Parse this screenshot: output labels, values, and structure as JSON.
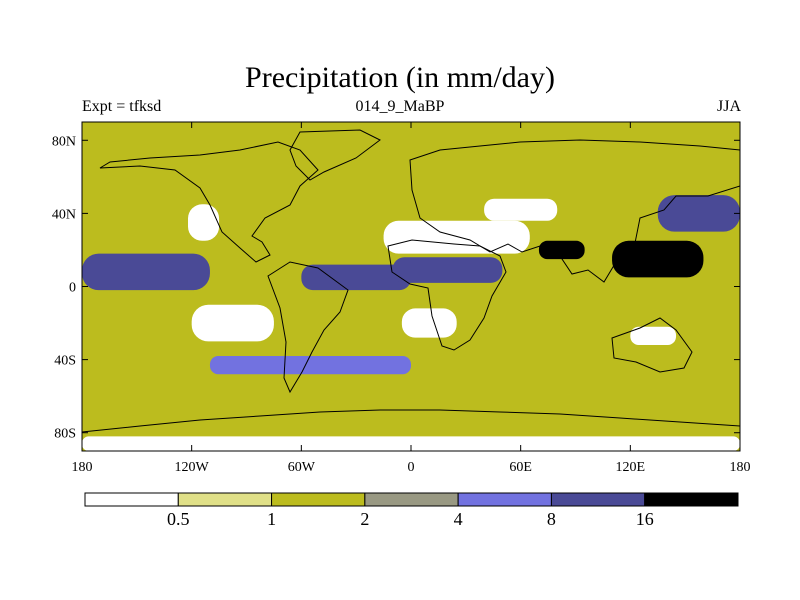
{
  "chart_data": {
    "type": "heatmap",
    "title": "Precipitation (in mm/day)",
    "subtitle_left": "Expt = tfksd",
    "subtitle_center": "014_9_MaBP",
    "subtitle_right": "JJA",
    "xlim": [
      -180,
      180
    ],
    "ylim": [
      -90,
      90
    ],
    "x_ticks": [
      {
        "value": -180,
        "label": "180"
      },
      {
        "value": -120,
        "label": "120W"
      },
      {
        "value": -60,
        "label": "60W"
      },
      {
        "value": 0,
        "label": "0"
      },
      {
        "value": 60,
        "label": "60E"
      },
      {
        "value": 120,
        "label": "120E"
      },
      {
        "value": 180,
        "label": "180"
      }
    ],
    "y_ticks": [
      {
        "value": 80,
        "label": "80N"
      },
      {
        "value": 40,
        "label": "40N"
      },
      {
        "value": 0,
        "label": "0"
      },
      {
        "value": -40,
        "label": "40S"
      },
      {
        "value": -80,
        "label": "80S"
      }
    ],
    "colorbar": {
      "levels": [
        0.5,
        1,
        2,
        4,
        8,
        16
      ],
      "labels": [
        "0.5",
        "1",
        "2",
        "4",
        "8",
        "16"
      ],
      "colors": [
        "#ffffff",
        "#e0e088",
        "#bcbc1e",
        "#999983",
        "#7272e0",
        "#4a4a96",
        "#000000"
      ]
    },
    "field_regions": [
      {
        "name": "global-background",
        "band": 2,
        "lon": [
          -180,
          180
        ],
        "lat": [
          -90,
          90
        ]
      },
      {
        "name": "tropical-pacific-rain",
        "band": 5,
        "lon": [
          -180,
          -110
        ],
        "lat": [
          -2,
          18
        ]
      },
      {
        "name": "atlantic-itcz",
        "band": 5,
        "lon": [
          -60,
          0
        ],
        "lat": [
          -2,
          12
        ]
      },
      {
        "name": "african-monsoon",
        "band": 5,
        "lon": [
          -10,
          50
        ],
        "lat": [
          2,
          16
        ]
      },
      {
        "name": "indian-monsoon",
        "band": 6,
        "lon": [
          70,
          95
        ],
        "lat": [
          15,
          25
        ]
      },
      {
        "name": "west-pacific-warm-pool",
        "band": 6,
        "lon": [
          110,
          160
        ],
        "lat": [
          5,
          25
        ]
      },
      {
        "name": "north-pacific-storm",
        "band": 5,
        "lon": [
          135,
          180
        ],
        "lat": [
          30,
          50
        ]
      },
      {
        "name": "sahara-arabia-desert",
        "band": 0,
        "lon": [
          -15,
          65
        ],
        "lat": [
          18,
          36
        ]
      },
      {
        "name": "central-asia-dry",
        "band": 0,
        "lon": [
          40,
          80
        ],
        "lat": [
          36,
          48
        ]
      },
      {
        "name": "southeast-pacific-dry",
        "band": 0,
        "lon": [
          -120,
          -75
        ],
        "lat": [
          -30,
          -10
        ]
      },
      {
        "name": "southern-africa-dry",
        "band": 0,
        "lon": [
          -5,
          25
        ],
        "lat": [
          -28,
          -12
        ]
      },
      {
        "name": "australia-dry",
        "band": 0,
        "lon": [
          120,
          145
        ],
        "lat": [
          -32,
          -22
        ]
      },
      {
        "name": "north-america-dry",
        "band": 0,
        "lon": [
          -122,
          -105
        ],
        "lat": [
          25,
          45
        ]
      },
      {
        "name": "antarctica-dry",
        "band": 0,
        "lon": [
          -180,
          180
        ],
        "lat": [
          -90,
          -82
        ]
      },
      {
        "name": "southern-ocean-storm",
        "band": 4,
        "lon": [
          -110,
          0
        ],
        "lat": [
          -48,
          -38
        ]
      }
    ]
  }
}
